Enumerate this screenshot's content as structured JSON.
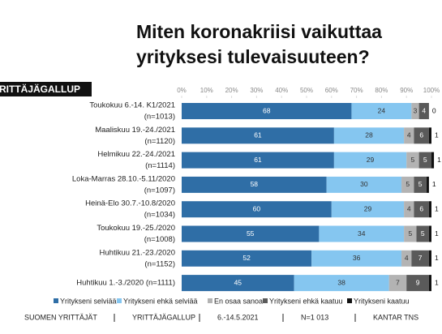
{
  "chart_data": {
    "type": "stacked-bar-horizontal",
    "title": [
      "Miten koronakriisi vaikuttaa",
      "yrityksesi tulevaisuuteen?"
    ],
    "badge": "YRITTÄJÄGALLUP",
    "categories": [
      [
        "Toukokuu 6.-14. K1/2021",
        "(n=1013)"
      ],
      [
        "Maaliskuu 19.-24./2021",
        "(n=1120)"
      ],
      [
        "Helmikuu 22.-24./2021",
        "(n=1114)"
      ],
      [
        "Loka-Marras 28.10.-5.11/2020",
        "(n=1097)"
      ],
      [
        "Heinä-Elo 30.7.-10.8/2020",
        "(n=1034)"
      ],
      [
        "Toukokuu 19.-25./2020",
        "(n=1008)"
      ],
      [
        "Huhtikuu 21.-23./2020",
        "(n=1152)"
      ],
      [
        "Huhtikuu 1.-3./2020 (n=1111)"
      ]
    ],
    "series": [
      {
        "name": "Yritykseni selviää",
        "color": "#2f6ea6",
        "values": [
          68,
          61,
          61,
          58,
          60,
          55,
          52,
          45
        ]
      },
      {
        "name": "Yritykseni ehkä selviää",
        "color": "#85c6f0",
        "values": [
          24,
          28,
          29,
          30,
          29,
          34,
          36,
          38
        ]
      },
      {
        "name": "En osaa sanoa",
        "color": "#b3b3b3",
        "values": [
          3,
          4,
          5,
          5,
          4,
          5,
          4,
          7
        ]
      },
      {
        "name": "Yritykseni ehkä kaatuu",
        "color": "#5a5a5a",
        "values": [
          4,
          6,
          5,
          5,
          6,
          5,
          7,
          9
        ]
      },
      {
        "name": "Yritykseni kaatuu",
        "color": "#111111",
        "values": [
          0,
          1,
          1,
          1,
          1,
          1,
          1,
          1
        ]
      }
    ],
    "xlim": [
      0,
      100
    ],
    "xticks": [
      {
        "value": 0,
        "label": "0%"
      },
      {
        "value": 10,
        "label": "10%"
      },
      {
        "value": 20,
        "label": "20%"
      },
      {
        "value": 30,
        "label": "30%"
      },
      {
        "value": 40,
        "label": "40%"
      },
      {
        "value": 50,
        "label": "50%"
      },
      {
        "value": 60,
        "label": "60%"
      },
      {
        "value": 70,
        "label": "70%"
      },
      {
        "value": 80,
        "label": "80%"
      },
      {
        "value": 90,
        "label": "90%"
      },
      {
        "value": 100,
        "label": "100%"
      }
    ],
    "footer": [
      "SUOMEN YRITTÄJÄT",
      "YRITTÄJÄGALLUP",
      "6.-14.5.2021",
      "N=1 013",
      "KANTAR TNS"
    ]
  }
}
